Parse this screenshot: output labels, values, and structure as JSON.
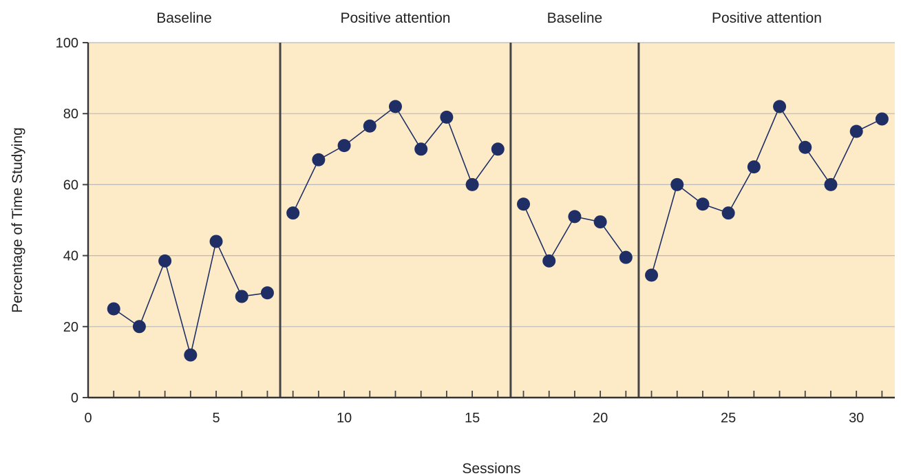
{
  "chart_data": {
    "type": "line",
    "title": "",
    "xlabel": "Sessions",
    "ylabel": "Percentage of Time Studying",
    "xlim": [
      0,
      31.5
    ],
    "ylim": [
      0,
      100
    ],
    "x_ticks": [
      0,
      5,
      10,
      15,
      20,
      25,
      30
    ],
    "y_ticks": [
      0,
      20,
      40,
      60,
      80,
      100
    ],
    "grid": true,
    "colors": {
      "background": "#fdebc8",
      "marker": "#1f2f66",
      "line": "#1f2f66",
      "grid": "#b9b9b9",
      "divider": "#444444"
    },
    "phases": [
      {
        "label": "Baseline",
        "start": 0,
        "end": 7.5
      },
      {
        "label": "Positive attention",
        "start": 7.5,
        "end": 16.5
      },
      {
        "label": "Baseline",
        "start": 16.5,
        "end": 21.5
      },
      {
        "label": "Positive attention",
        "start": 21.5,
        "end": 31.5
      }
    ],
    "series": [
      {
        "x": [
          1,
          2,
          3,
          4,
          5,
          6,
          7
        ],
        "values": [
          25,
          20,
          38.5,
          12,
          44,
          28.5,
          29.5
        ]
      },
      {
        "x": [
          8,
          9,
          10,
          11,
          12,
          13,
          14,
          15,
          16
        ],
        "values": [
          52,
          67,
          71,
          76.5,
          82,
          70,
          79,
          60,
          70
        ]
      },
      {
        "x": [
          17,
          18,
          19,
          20,
          21
        ],
        "values": [
          54.5,
          38.5,
          51,
          49.5,
          39.5
        ]
      },
      {
        "x": [
          22,
          23,
          24,
          25,
          26,
          27,
          28,
          29,
          30,
          31
        ],
        "values": [
          34.5,
          60,
          54.5,
          52,
          65,
          82,
          70.5,
          60,
          75,
          78.5
        ]
      }
    ]
  }
}
